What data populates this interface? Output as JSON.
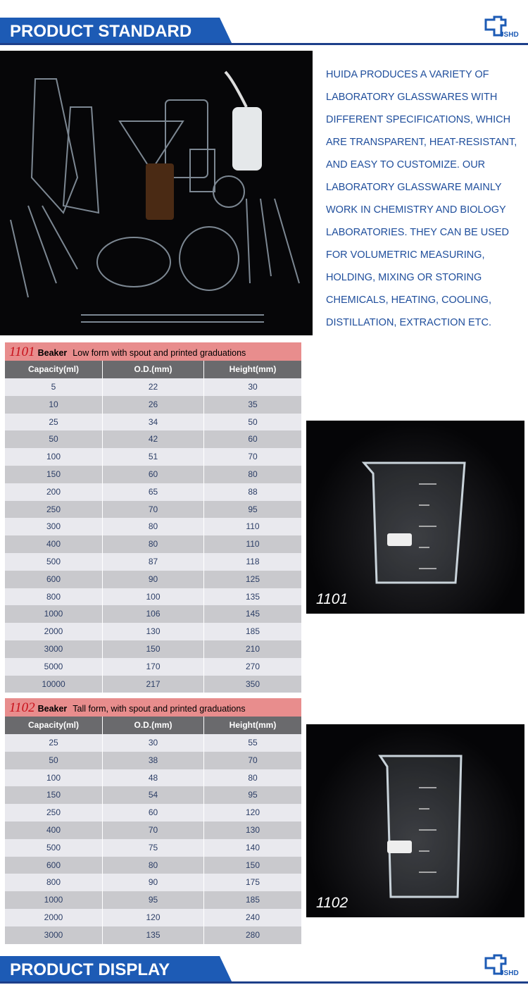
{
  "header": {
    "title": "PRODUCT STANDARD",
    "logo": "JSHD"
  },
  "intro": {
    "lines": [
      "HUIDA PRODUCES A VARIETY OF",
      "LABORATORY GLASSWARES WITH",
      "DIFFERENT SPECIFICATIONS, WHICH",
      "ARE TRANSPARENT, HEAT-RESISTANT,",
      "AND EASY TO CUSTOMIZE. OUR",
      "LABORATORY GLASSWARE MAINLY",
      "WORK IN CHEMISTRY AND BIOLOGY",
      "LABORATORIES. THEY CAN BE USED",
      "FOR VOLUMETRIC MEASURING,",
      "HOLDING, MIXING OR STORING",
      "CHEMICALS, HEATING, COOLING,",
      "DISTILLATION, EXTRACTION ETC."
    ]
  },
  "tables": [
    {
      "code": "1101",
      "name": "Beaker",
      "description": "Low form with spout and printed graduations",
      "columns": [
        "Capacity(ml)",
        "O.D.(mm)",
        "Height(mm)"
      ],
      "rows": [
        [
          5,
          22,
          30
        ],
        [
          10,
          26,
          35
        ],
        [
          25,
          34,
          50
        ],
        [
          50,
          42,
          60
        ],
        [
          100,
          51,
          70
        ],
        [
          150,
          60,
          80
        ],
        [
          200,
          65,
          88
        ],
        [
          250,
          70,
          95
        ],
        [
          300,
          80,
          110
        ],
        [
          400,
          80,
          110
        ],
        [
          500,
          87,
          118
        ],
        [
          600,
          90,
          125
        ],
        [
          800,
          100,
          135
        ],
        [
          1000,
          106,
          145
        ],
        [
          2000,
          130,
          185
        ],
        [
          3000,
          150,
          210
        ],
        [
          5000,
          170,
          270
        ],
        [
          10000,
          217,
          350
        ]
      ],
      "image_caption": "1101"
    },
    {
      "code": "1102",
      "name": "Beaker",
      "description": "Tall form, with spout and printed graduations",
      "columns": [
        "Capacity(ml)",
        "O.D.(mm)",
        "Height(mm)"
      ],
      "rows": [
        [
          25,
          30,
          55
        ],
        [
          50,
          38,
          70
        ],
        [
          100,
          48,
          80
        ],
        [
          150,
          54,
          95
        ],
        [
          250,
          60,
          120
        ],
        [
          400,
          70,
          130
        ],
        [
          500,
          75,
          140
        ],
        [
          600,
          80,
          150
        ],
        [
          800,
          90,
          175
        ],
        [
          1000,
          95,
          185
        ],
        [
          2000,
          120,
          240
        ],
        [
          3000,
          135,
          280
        ]
      ],
      "image_caption": "1102"
    }
  ],
  "footer": {
    "title": "PRODUCT DISPLAY",
    "logo": "JSHD"
  }
}
